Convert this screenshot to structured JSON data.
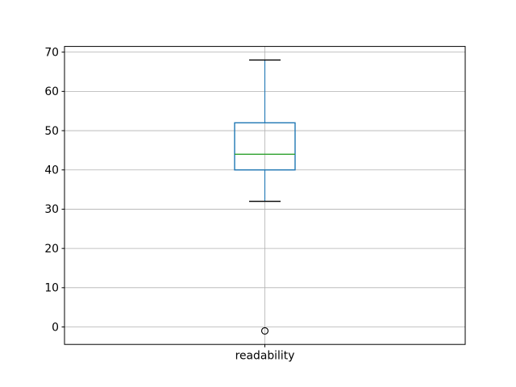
{
  "figure": {
    "background": "#ffffff"
  },
  "chart_data": {
    "type": "boxplot",
    "title": "",
    "xlabel": "",
    "ylabel": "",
    "categories": [
      "readability"
    ],
    "series": [
      {
        "label": "readability",
        "whisker_low": 32,
        "q1": 40,
        "median": 44,
        "q3": 52,
        "whisker_high": 68,
        "outliers": [
          -1
        ]
      }
    ],
    "yticks": [
      0,
      10,
      20,
      30,
      40,
      50,
      60,
      70
    ],
    "ylim": [
      -4.45,
      71.45
    ],
    "grid": true,
    "legend_position": "none",
    "colors": {
      "box": "#1f77b4",
      "median": "#2ca02c",
      "whisker": "#1f77b4",
      "cap": "#000000",
      "outlier": "#000000",
      "grid": "#b0b0b0",
      "axis": "#000000",
      "text": "#000000"
    }
  }
}
